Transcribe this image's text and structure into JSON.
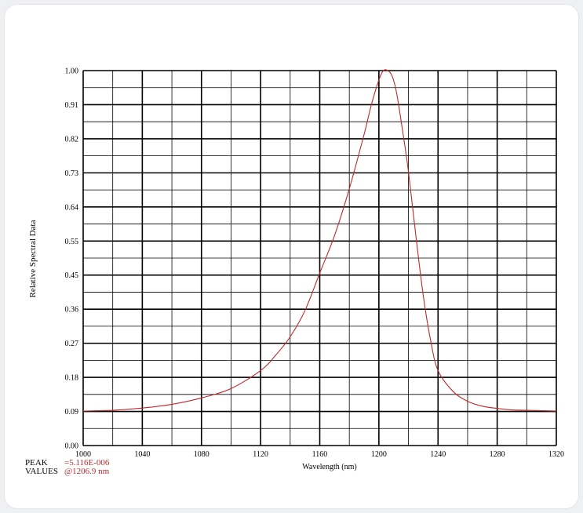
{
  "chart_data": {
    "type": "line",
    "title": "",
    "xlabel": "Wavelength (nm)",
    "ylabel": "Relative Spectral Data",
    "xlim": [
      1000,
      1320
    ],
    "ylim": [
      0.0,
      1.0
    ],
    "x_ticks": [
      "1000",
      "1040",
      "1080",
      "1120",
      "1160",
      "1200",
      "1240",
      "1280",
      "1320"
    ],
    "y_ticks": [
      "0.00",
      "0.09",
      "0.18",
      "0.27",
      "0.36",
      "0.45",
      "0.55",
      "0.64",
      "0.73",
      "0.82",
      "0.91",
      "1.00"
    ],
    "grid": true,
    "series": [
      {
        "color": "#c0282d",
        "x": [
          1000,
          1020,
          1040,
          1060,
          1080,
          1100,
          1120,
          1130,
          1140,
          1150,
          1160,
          1170,
          1180,
          1190,
          1195,
          1200,
          1203,
          1206,
          1209,
          1212,
          1216,
          1220,
          1225,
          1230,
          1235,
          1240,
          1250,
          1260,
          1270,
          1280,
          1290,
          1300,
          1310,
          1320
        ],
        "y": [
          0.092,
          0.094,
          0.1,
          0.11,
          0.127,
          0.152,
          0.2,
          0.24,
          0.29,
          0.36,
          0.46,
          0.56,
          0.685,
          0.83,
          0.91,
          0.975,
          1.0,
          1.0,
          0.985,
          0.94,
          0.84,
          0.73,
          0.56,
          0.4,
          0.28,
          0.2,
          0.145,
          0.118,
          0.105,
          0.099,
          0.095,
          0.094,
          0.093,
          0.092
        ]
      }
    ],
    "peak_label": "PEAK",
    "peak_value": "=5.116E-006",
    "values_label": "VALUES",
    "values_value": "@1206.9 nm"
  }
}
